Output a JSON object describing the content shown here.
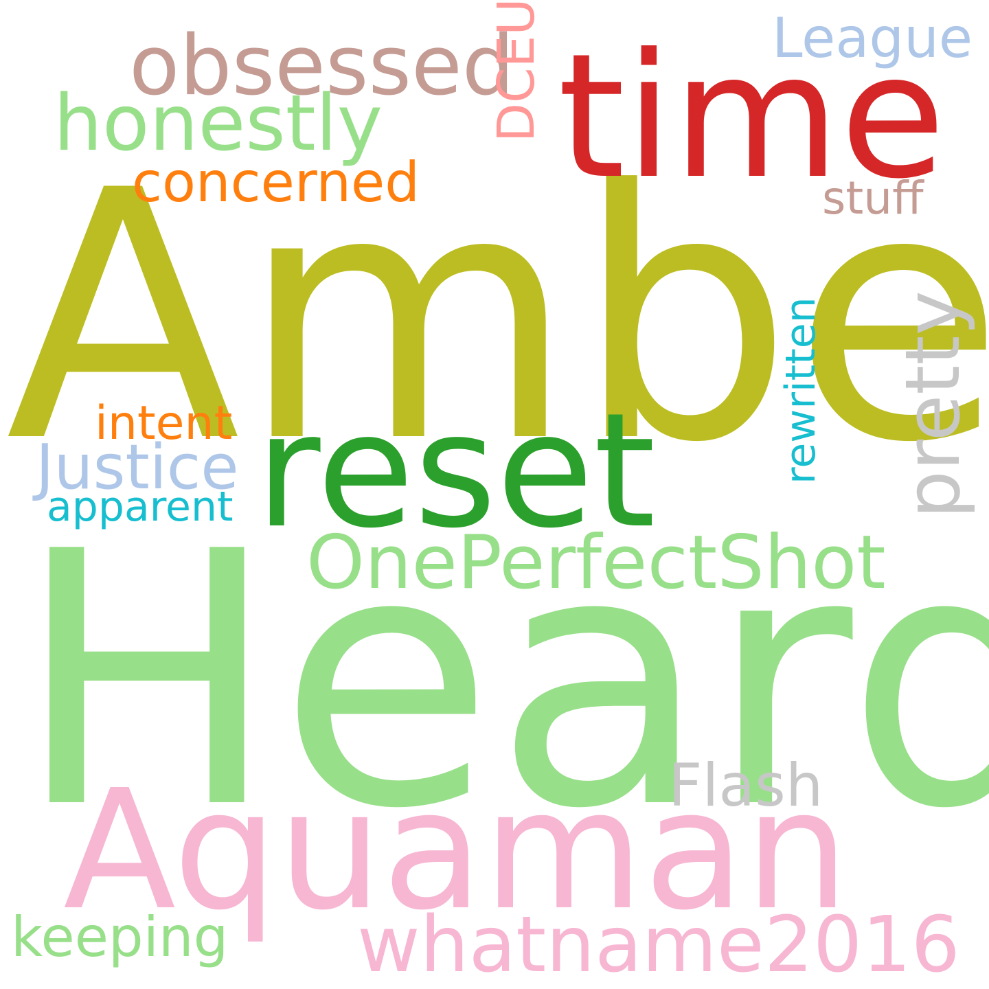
{
  "wordcloud": {
    "background": "#ffffff",
    "words": [
      {
        "key": "amber",
        "text": "Amber",
        "color": "#bcbd22",
        "orientation": "horizontal"
      },
      {
        "key": "heard",
        "text": "Heard",
        "color": "#98df8a",
        "orientation": "horizontal"
      },
      {
        "key": "time",
        "text": "time",
        "color": "#d62728",
        "orientation": "horizontal"
      },
      {
        "key": "reset",
        "text": "reset",
        "color": "#2ca02c",
        "orientation": "horizontal"
      },
      {
        "key": "aquaman",
        "text": "Aquaman",
        "color": "#f7b6d2",
        "orientation": "horizontal"
      },
      {
        "key": "obsessed",
        "text": "obsessed",
        "color": "#c49c94",
        "orientation": "horizontal"
      },
      {
        "key": "honestly",
        "text": "honestly",
        "color": "#98df8a",
        "orientation": "horizontal"
      },
      {
        "key": "concerned",
        "text": "concerned",
        "color": "#ff7f0e",
        "orientation": "horizontal"
      },
      {
        "key": "league",
        "text": "League",
        "color": "#aec7e8",
        "orientation": "horizontal"
      },
      {
        "key": "stuff",
        "text": "stuff",
        "color": "#c49c94",
        "orientation": "horizontal"
      },
      {
        "key": "intent",
        "text": "intent",
        "color": "#ff7f0e",
        "orientation": "horizontal"
      },
      {
        "key": "justice",
        "text": "Justice",
        "color": "#aec7e8",
        "orientation": "horizontal"
      },
      {
        "key": "apparent",
        "text": "apparent",
        "color": "#17becf",
        "orientation": "horizontal"
      },
      {
        "key": "opps",
        "text": "OnePerfectShot",
        "color": "#98df8a",
        "orientation": "horizontal"
      },
      {
        "key": "flash",
        "text": "Flash",
        "color": "#c7c7c7",
        "orientation": "horizontal"
      },
      {
        "key": "whatname",
        "text": "whatname2016",
        "color": "#f7b6d2",
        "orientation": "horizontal"
      },
      {
        "key": "keeping",
        "text": "keeping",
        "color": "#98df8a",
        "orientation": "horizontal"
      },
      {
        "key": "dceu",
        "text": "DCEU",
        "color": "#ff9896",
        "orientation": "vertical"
      },
      {
        "key": "rewritten",
        "text": "rewritten",
        "color": "#17becf",
        "orientation": "vertical"
      },
      {
        "key": "pretty",
        "text": "pretty",
        "color": "#c7c7c7",
        "orientation": "vertical"
      }
    ]
  }
}
